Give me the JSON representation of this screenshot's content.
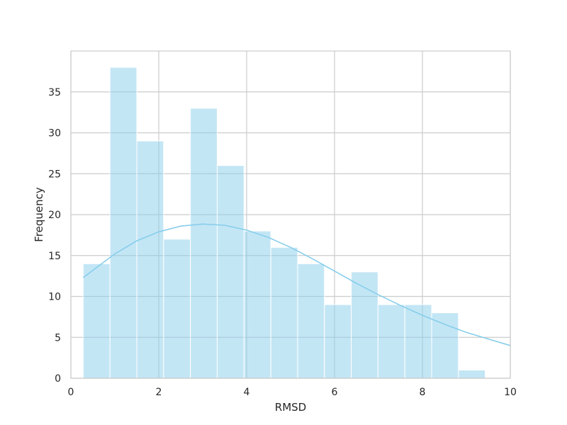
{
  "chart_data": {
    "type": "bar",
    "subtype": "histogram with kde",
    "title": "",
    "xlabel": "RMSD",
    "ylabel": "Frequency",
    "xlim": [
      0,
      10
    ],
    "ylim": [
      0,
      40
    ],
    "x_ticks": [
      0,
      2,
      4,
      6,
      8,
      10
    ],
    "y_ticks": [
      0,
      5,
      10,
      15,
      20,
      25,
      30,
      35
    ],
    "grid": true,
    "legend": "none",
    "bar_color": "#87ceeb",
    "bins": [
      {
        "start": 0.28,
        "end": 0.89,
        "count": 14
      },
      {
        "start": 0.89,
        "end": 1.5,
        "count": 38
      },
      {
        "start": 1.5,
        "end": 2.11,
        "count": 29
      },
      {
        "start": 2.11,
        "end": 2.72,
        "count": 17
      },
      {
        "start": 2.72,
        "end": 3.33,
        "count": 33
      },
      {
        "start": 3.33,
        "end": 3.94,
        "count": 26
      },
      {
        "start": 3.94,
        "end": 4.55,
        "count": 18
      },
      {
        "start": 4.55,
        "end": 5.16,
        "count": 16
      },
      {
        "start": 5.16,
        "end": 5.77,
        "count": 14
      },
      {
        "start": 5.77,
        "end": 6.38,
        "count": 9
      },
      {
        "start": 6.38,
        "end": 6.99,
        "count": 13
      },
      {
        "start": 6.99,
        "end": 7.6,
        "count": 9
      },
      {
        "start": 7.6,
        "end": 8.21,
        "count": 9
      },
      {
        "start": 8.21,
        "end": 8.82,
        "count": 8
      },
      {
        "start": 8.82,
        "end": 9.43,
        "count": 1
      }
    ],
    "kde": {
      "x": [
        0.28,
        1.0,
        1.5,
        2.0,
        2.5,
        3.0,
        3.5,
        4.0,
        4.5,
        5.0,
        5.5,
        6.0,
        6.5,
        7.0,
        7.5,
        8.0,
        8.5,
        9.0,
        9.5,
        10.0
      ],
      "y": [
        12.3,
        15.2,
        16.8,
        17.9,
        18.6,
        18.85,
        18.7,
        18.1,
        17.2,
        16.0,
        14.6,
        13.1,
        11.6,
        10.2,
        8.9,
        7.7,
        6.6,
        5.6,
        4.8,
        4.0
      ]
    }
  }
}
